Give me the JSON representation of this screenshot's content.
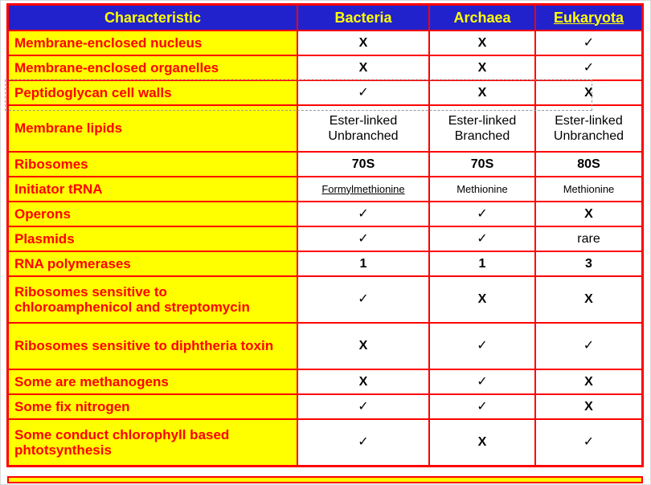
{
  "table": {
    "columns": [
      {
        "text": "Characteristic"
      },
      {
        "text": "Bacteria"
      },
      {
        "text": "Archaea"
      },
      {
        "text": "Eukaryota",
        "underline": true
      }
    ],
    "rows": [
      {
        "label": "Membrane-enclosed nucleus",
        "cells": [
          {
            "text": "X",
            "bold": true
          },
          {
            "text": "X",
            "bold": true
          },
          {
            "text": "✓"
          }
        ]
      },
      {
        "label": "Membrane-enclosed organelles",
        "cells": [
          {
            "text": "X",
            "bold": true
          },
          {
            "text": "X",
            "bold": true
          },
          {
            "text": "✓"
          }
        ]
      },
      {
        "label": "Peptidoglycan cell walls",
        "selected": true,
        "cells": [
          {
            "text": "✓"
          },
          {
            "text": "X",
            "bold": true
          },
          {
            "text": "X",
            "bold": true
          }
        ]
      },
      {
        "label": "Membrane lipids",
        "cells": [
          {
            "text": "Ester-linked\nUnbranched"
          },
          {
            "text": "Ester-linked\nBranched"
          },
          {
            "text": "Ester-linked\nUnbranched"
          }
        ]
      },
      {
        "label": "Ribosomes",
        "cells": [
          {
            "text": "70S",
            "bold": true
          },
          {
            "text": "70S",
            "bold": true
          },
          {
            "text": "80S",
            "bold": true
          }
        ]
      },
      {
        "label": "Initiator tRNA",
        "small": true,
        "cells": [
          {
            "text": "Formylmethionine",
            "underline": true
          },
          {
            "text": "Methionine"
          },
          {
            "text": "Methionine"
          }
        ]
      },
      {
        "label": "Operons",
        "cells": [
          {
            "text": "✓"
          },
          {
            "text": "✓"
          },
          {
            "text": "X",
            "bold": true
          }
        ]
      },
      {
        "label": "Plasmids",
        "cells": [
          {
            "text": "✓"
          },
          {
            "text": "✓"
          },
          {
            "text": "rare"
          }
        ]
      },
      {
        "label": "RNA polymerases",
        "cells": [
          {
            "text": "1",
            "bold": true
          },
          {
            "text": "1",
            "bold": true
          },
          {
            "text": "3",
            "bold": true
          }
        ]
      },
      {
        "label": "Ribosomes sensitive to chloroamphenicol and streptomycin",
        "cells": [
          {
            "text": "✓"
          },
          {
            "text": "X",
            "bold": true
          },
          {
            "text": "X",
            "bold": true
          }
        ]
      },
      {
        "label": "Ribosomes sensitive to diphtheria toxin",
        "cells": [
          {
            "text": "X",
            "bold": true
          },
          {
            "text": "✓"
          },
          {
            "text": "✓"
          }
        ]
      },
      {
        "label": "Some are methanogens",
        "cells": [
          {
            "text": "X",
            "bold": true
          },
          {
            "text": "✓"
          },
          {
            "text": "X",
            "bold": true
          }
        ]
      },
      {
        "label": "Some fix nitrogen",
        "cells": [
          {
            "text": "✓"
          },
          {
            "text": "✓"
          },
          {
            "text": "X",
            "bold": true
          }
        ]
      },
      {
        "label": "Some conduct chlorophyll based phtotsynthesis",
        "cells": [
          {
            "text": "✓"
          },
          {
            "text": "X",
            "bold": true
          },
          {
            "text": "✓"
          }
        ]
      }
    ]
  },
  "colors": {
    "header_bg": "#2222CC",
    "header_text": "#FFFF00",
    "label_bg": "#FFFF00",
    "label_text": "#FF0000",
    "grid": "#FF0000",
    "cell_bg": "#FFFFFF",
    "cell_text": "#000000"
  }
}
